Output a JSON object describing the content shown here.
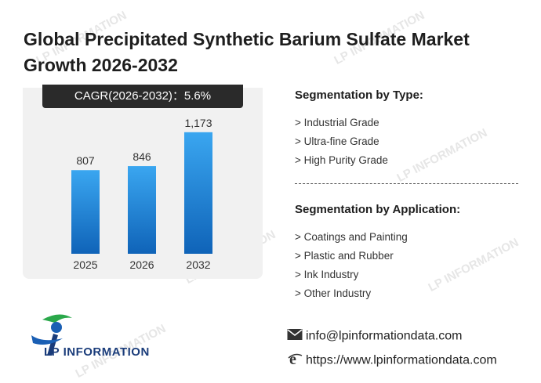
{
  "title": "Global Precipitated Synthetic Barium Sulfate Market Growth 2026-2032",
  "cagr_label": "CAGR(2026-2032)：5.6%",
  "chart_data": {
    "type": "bar",
    "categories": [
      "2025",
      "2026",
      "2032"
    ],
    "values": [
      807,
      846,
      1173
    ],
    "value_labels": [
      "807",
      "846",
      "1,173"
    ],
    "ylim": [
      0,
      1300
    ],
    "bar_color": "#1a7fd4",
    "grid": false
  },
  "segmentation_type": {
    "heading": "Segmentation by Type:",
    "items": [
      "> Industrial Grade",
      "> Ultra-fine Grade",
      "> High Purity Grade"
    ]
  },
  "segmentation_application": {
    "heading": "Segmentation by Application:",
    "items": [
      "> Coatings and Painting",
      "> Plastic and Rubber",
      "> Ink Industry",
      "> Other Industry"
    ]
  },
  "logo": {
    "text": "LP INFORMATION"
  },
  "contact": {
    "email": "info@lpinformationdata.com",
    "website": "https://www.lpinformationdata.com",
    "email_icon": "envelope-icon",
    "web_icon": "browser-e-icon"
  },
  "watermark_text": "LP INFORMATION",
  "colors": {
    "brand_blue": "#1a3c7a",
    "accent_green": "#2aa84a"
  }
}
